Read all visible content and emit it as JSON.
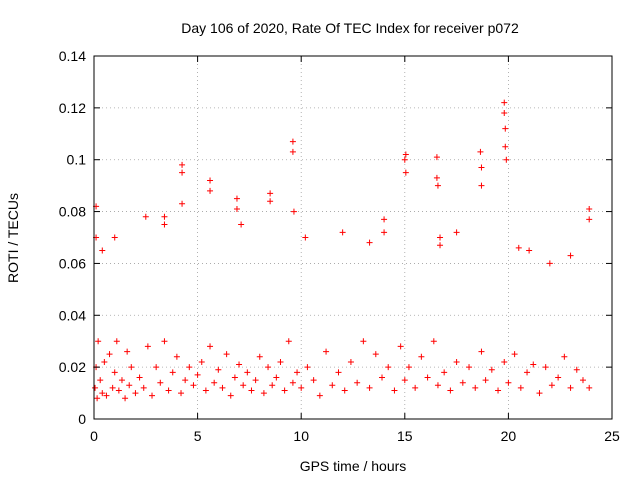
{
  "chart_data": {
    "type": "scatter",
    "title": "Day 106 of 2020, Rate Of TEC Index for receiver p072",
    "xlabel": "GPS time / hours",
    "ylabel": "ROTI / TECUs",
    "xlim": [
      0,
      25
    ],
    "ylim": [
      0,
      0.14
    ],
    "x_ticks": [
      0,
      5,
      10,
      15,
      20,
      25
    ],
    "x_tick_labels": [
      "0",
      "5",
      "10",
      "15",
      "20",
      "25"
    ],
    "y_ticks": [
      0,
      0.02,
      0.04,
      0.06,
      0.08,
      0.1,
      0.12,
      0.14
    ],
    "y_tick_labels": [
      "0",
      "0.02",
      "0.04",
      "0.06",
      "0.08",
      "0.1",
      "0.12",
      "0.14"
    ],
    "grid": true,
    "marker": "plus",
    "color": "#ff0000",
    "series": [
      {
        "name": "ROTI",
        "x": [
          0.05,
          0.1,
          0.15,
          0.2,
          0.3,
          0.4,
          0.5,
          0.6,
          0.75,
          0.9,
          1.0,
          1.1,
          1.2,
          1.35,
          1.5,
          1.6,
          1.7,
          1.8,
          2.0,
          2.2,
          2.4,
          2.6,
          2.8,
          3.0,
          3.2,
          3.4,
          3.6,
          3.8,
          4.0,
          4.2,
          4.4,
          4.6,
          4.8,
          5.0,
          5.2,
          5.4,
          5.6,
          5.8,
          6.0,
          6.2,
          6.4,
          6.6,
          6.8,
          7.0,
          7.2,
          7.4,
          7.6,
          7.8,
          8.0,
          8.2,
          8.4,
          8.6,
          8.8,
          9.0,
          9.2,
          9.4,
          9.6,
          9.8,
          10.0,
          10.3,
          10.6,
          10.9,
          11.2,
          11.5,
          11.8,
          12.1,
          12.4,
          12.7,
          13.0,
          13.3,
          13.6,
          13.9,
          14.2,
          14.5,
          14.8,
          15.0,
          15.2,
          15.5,
          15.8,
          16.1,
          16.4,
          16.6,
          16.9,
          17.2,
          17.5,
          17.8,
          18.1,
          18.4,
          18.7,
          18.9,
          19.2,
          19.5,
          19.8,
          20.0,
          20.3,
          20.6,
          20.9,
          21.2,
          21.5,
          21.8,
          22.1,
          22.4,
          22.7,
          23.0,
          23.3,
          23.6,
          23.9,
          4.25,
          4.25,
          4.25,
          5.6,
          5.6,
          6.9,
          6.9,
          8.5,
          8.5,
          9.6,
          9.6,
          9.65,
          15.0,
          15.05,
          15.05,
          16.55,
          16.55,
          16.6,
          18.65,
          18.7,
          18.7,
          19.8,
          19.8,
          19.85,
          19.85,
          19.9,
          23.9,
          23.9,
          0.1,
          0.1,
          3.4,
          3.4,
          14.0,
          14.0,
          16.7,
          16.7,
          12.0,
          10.2,
          2.5,
          1.0,
          21.0,
          22.0,
          23.0,
          0.4,
          7.1,
          13.3,
          17.5,
          20.5
        ],
        "y": [
          0.012,
          0.02,
          0.008,
          0.03,
          0.015,
          0.01,
          0.022,
          0.009,
          0.025,
          0.012,
          0.018,
          0.03,
          0.011,
          0.015,
          0.008,
          0.026,
          0.013,
          0.02,
          0.01,
          0.016,
          0.012,
          0.028,
          0.009,
          0.02,
          0.014,
          0.03,
          0.011,
          0.018,
          0.024,
          0.01,
          0.015,
          0.02,
          0.013,
          0.017,
          0.022,
          0.011,
          0.028,
          0.014,
          0.019,
          0.012,
          0.025,
          0.009,
          0.016,
          0.021,
          0.013,
          0.018,
          0.011,
          0.015,
          0.024,
          0.01,
          0.02,
          0.013,
          0.016,
          0.022,
          0.011,
          0.03,
          0.014,
          0.018,
          0.012,
          0.02,
          0.015,
          0.009,
          0.026,
          0.013,
          0.018,
          0.011,
          0.022,
          0.014,
          0.03,
          0.012,
          0.025,
          0.016,
          0.02,
          0.011,
          0.028,
          0.015,
          0.02,
          0.012,
          0.024,
          0.016,
          0.03,
          0.013,
          0.018,
          0.011,
          0.022,
          0.014,
          0.02,
          0.012,
          0.026,
          0.015,
          0.019,
          0.011,
          0.022,
          0.014,
          0.025,
          0.012,
          0.018,
          0.021,
          0.01,
          0.02,
          0.013,
          0.016,
          0.024,
          0.012,
          0.019,
          0.015,
          0.012,
          0.098,
          0.095,
          0.083,
          0.092,
          0.088,
          0.085,
          0.081,
          0.087,
          0.084,
          0.107,
          0.103,
          0.08,
          0.1,
          0.102,
          0.095,
          0.101,
          0.093,
          0.09,
          0.103,
          0.097,
          0.09,
          0.122,
          0.118,
          0.112,
          0.105,
          0.1,
          0.081,
          0.077,
          0.082,
          0.07,
          0.075,
          0.078,
          0.077,
          0.072,
          0.067,
          0.07,
          0.072,
          0.07,
          0.078,
          0.07,
          0.065,
          0.06,
          0.063,
          0.065,
          0.075,
          0.068,
          0.072,
          0.066
        ]
      }
    ]
  }
}
